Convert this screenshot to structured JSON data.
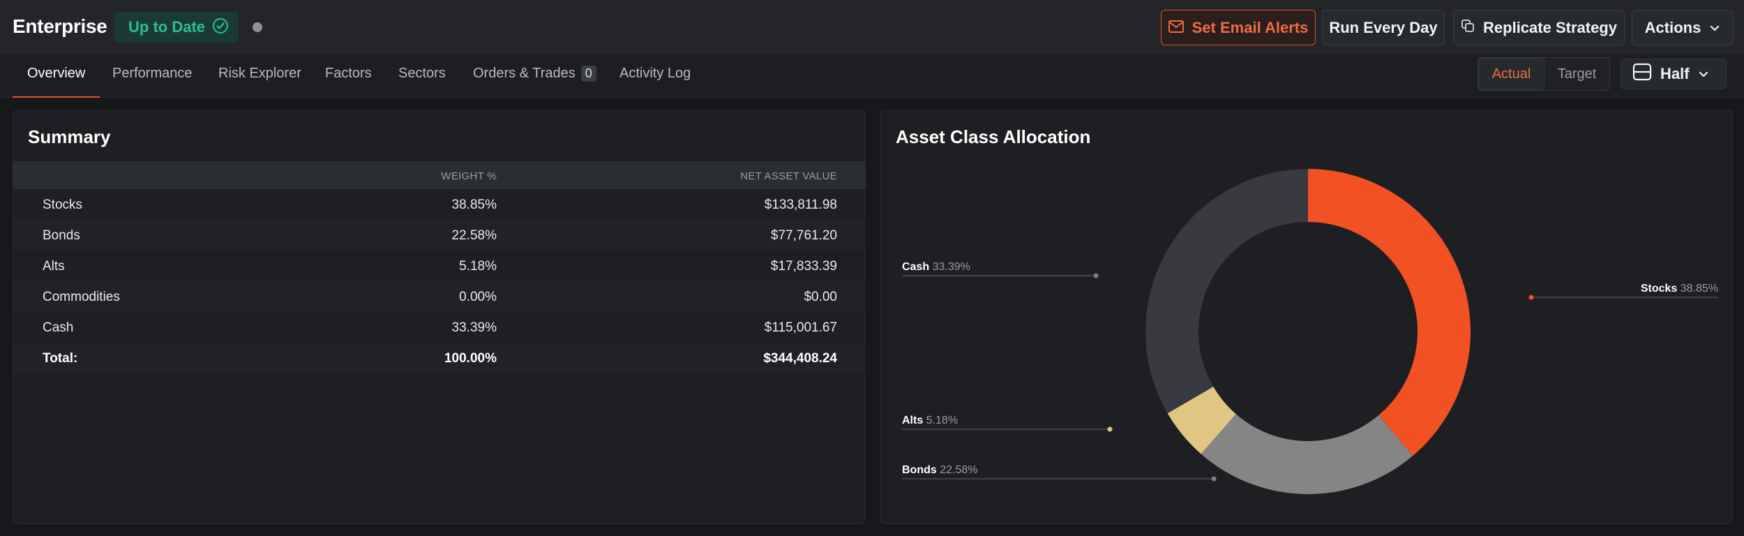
{
  "header": {
    "title": "Enterprise",
    "status": "Up to Date",
    "buttons": {
      "email": "Set Email Alerts",
      "run": "Run Every Day",
      "replicate": "Replicate Strategy",
      "actions": "Actions"
    }
  },
  "tabs": [
    {
      "label": "Overview",
      "active": true
    },
    {
      "label": "Performance"
    },
    {
      "label": "Risk Explorer"
    },
    {
      "label": "Factors"
    },
    {
      "label": "Sectors"
    },
    {
      "label": "Orders & Trades",
      "count": "0"
    },
    {
      "label": "Activity Log"
    }
  ],
  "view_toggle": {
    "actual": "Actual",
    "target": "Target",
    "layout": "Half"
  },
  "summary": {
    "title": "Summary",
    "columns": [
      "",
      "WEIGHT %",
      "NET ASSET VALUE"
    ],
    "rows": [
      {
        "name": "Stocks",
        "weight": "38.85%",
        "nav": "$133,811.98"
      },
      {
        "name": "Bonds",
        "weight": "22.58%",
        "nav": "$77,761.20"
      },
      {
        "name": "Alts",
        "weight": "5.18%",
        "nav": "$17,833.39"
      },
      {
        "name": "Commodities",
        "weight": "0.00%",
        "nav": "$0.00"
      },
      {
        "name": "Cash",
        "weight": "33.39%",
        "nav": "$115,001.67"
      }
    ],
    "total": {
      "name": "Total:",
      "weight": "100.00%",
      "nav": "$344,408.24"
    }
  },
  "chart_data": {
    "type": "pie",
    "title": "Asset Class Allocation",
    "donut": true,
    "slices": [
      {
        "label": "Stocks",
        "value": 38.85,
        "display": "38.85%",
        "color": "#f15123"
      },
      {
        "label": "Bonds",
        "value": 22.58,
        "display": "22.58%",
        "color": "#858585"
      },
      {
        "label": "Alts",
        "value": 5.18,
        "display": "5.18%",
        "color": "#e1c582"
      },
      {
        "label": "Cash",
        "value": 33.39,
        "display": "33.39%",
        "color": "#393940"
      }
    ]
  },
  "colors": {
    "accent": "#e5522a",
    "status": "#2bbf96"
  }
}
